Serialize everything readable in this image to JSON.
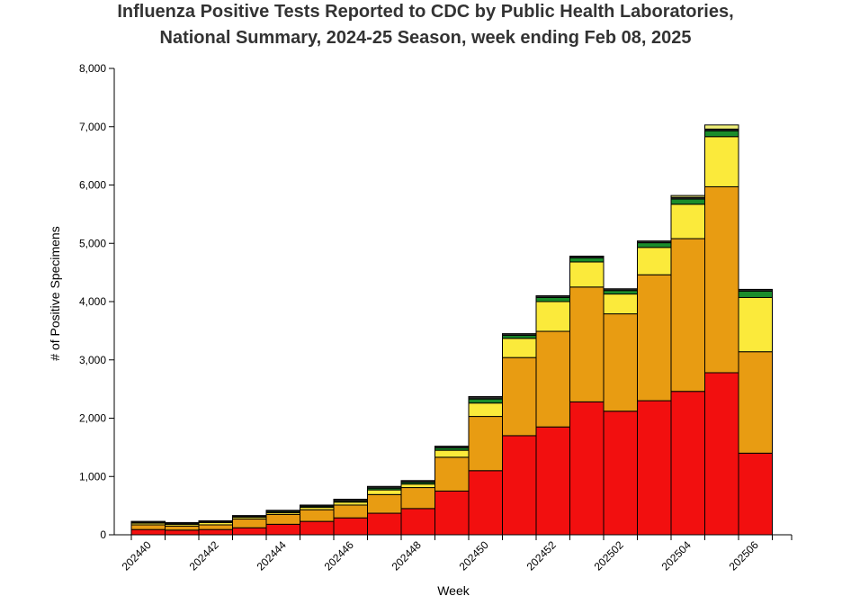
{
  "title_line1": "Influenza Positive Tests Reported to CDC by Public Health Laboratories,",
  "title_line2": "National Summary, 2024-25 Season, week ending Feb 08, 2025",
  "chart_data": {
    "type": "bar",
    "stacked": true,
    "title": "Influenza Positive Tests Reported to CDC by Public Health Laboratories, National Summary, 2024-25 Season, week ending Feb 08, 2025",
    "xlabel": "Week",
    "ylabel": "# of Positive Specimens",
    "ylim": [
      0,
      8000
    ],
    "yticks": [
      "0",
      "1,000",
      "2,000",
      "3,000",
      "4,000",
      "5,000",
      "6,000",
      "7,000",
      "8,000"
    ],
    "xtick_labels": [
      "202440",
      "202442",
      "202444",
      "202446",
      "202448",
      "202450",
      "202452",
      "202502",
      "202504",
      "202506"
    ],
    "categories": [
      "202440",
      "202441",
      "202442",
      "202443",
      "202444",
      "202445",
      "202446",
      "202447",
      "202448",
      "202449",
      "202450",
      "202451",
      "202452",
      "202501",
      "202502",
      "202503",
      "202504",
      "202505",
      "202506"
    ],
    "grid": false,
    "legend": "none",
    "series": [
      {
        "color": "#f20f0f",
        "values": [
          90,
          80,
          90,
          120,
          180,
          230,
          290,
          370,
          450,
          750,
          1100,
          1700,
          1850,
          2280,
          2120,
          2300,
          2460,
          2780,
          1400
        ]
      },
      {
        "color": "#e89c12",
        "values": [
          80,
          70,
          80,
          150,
          170,
          200,
          220,
          320,
          360,
          580,
          930,
          1340,
          1640,
          1970,
          1670,
          2160,
          2620,
          3190,
          1740
        ]
      },
      {
        "color": "#fbea3b",
        "values": [
          30,
          30,
          40,
          30,
          30,
          40,
          50,
          80,
          60,
          120,
          230,
          330,
          510,
          430,
          340,
          470,
          590,
          860,
          930
        ]
      },
      {
        "color": "#1a8c2b",
        "values": [
          10,
          10,
          10,
          10,
          20,
          20,
          20,
          30,
          30,
          40,
          70,
          50,
          70,
          70,
          60,
          80,
          90,
          100,
          110
        ]
      },
      {
        "color": "#2b2b2b",
        "values": [
          20,
          20,
          20,
          20,
          20,
          20,
          30,
          30,
          30,
          30,
          40,
          30,
          30,
          30,
          30,
          30,
          30,
          30,
          30
        ]
      },
      {
        "color": "#f0f07a",
        "values": [
          0,
          0,
          0,
          0,
          0,
          0,
          0,
          0,
          0,
          0,
          0,
          0,
          0,
          0,
          0,
          0,
          30,
          70,
          0
        ]
      }
    ]
  }
}
